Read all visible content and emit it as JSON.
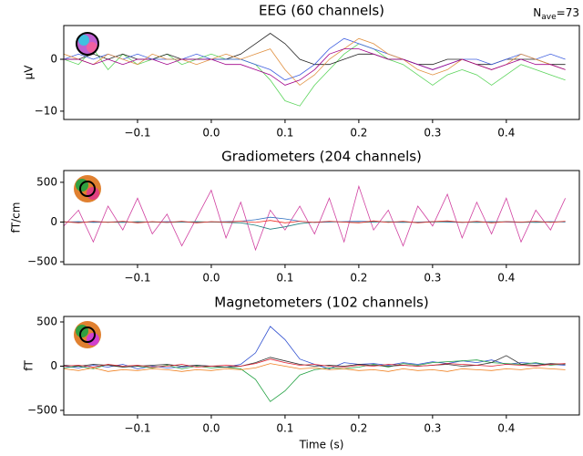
{
  "chart_data": [
    {
      "type": "line",
      "title": "EEG (60 channels)",
      "ylabel": "µV",
      "annotation": {
        "text": "N",
        "subscript": "ave",
        "suffix": "=73"
      },
      "x": [
        -0.2,
        -0.18,
        -0.16,
        -0.14,
        -0.12,
        -0.1,
        -0.08,
        -0.06,
        -0.04,
        -0.02,
        0,
        0.02,
        0.04,
        0.06,
        0.08,
        0.1,
        0.12,
        0.14,
        0.16,
        0.18,
        0.2,
        0.22,
        0.24,
        0.26,
        0.28,
        0.3,
        0.32,
        0.34,
        0.36,
        0.38,
        0.4,
        0.42,
        0.44,
        0.46,
        0.48
      ],
      "xlim": [
        -0.2,
        0.499
      ],
      "ylim": [
        -11.6,
        6.5
      ],
      "xticks": [
        {
          "value": -0.1,
          "label": "−0.1"
        },
        {
          "value": 0,
          "label": "0.0"
        },
        0.1,
        0.2,
        0.3,
        0.4
      ],
      "yticks": [
        {
          "value": -10,
          "label": "−10"
        },
        0
      ],
      "series": [
        {
          "color": "#5ad45a",
          "values": [
            0,
            -1,
            2,
            -2,
            1,
            -1,
            0,
            1,
            -1,
            0,
            1,
            0,
            0,
            -1,
            -4,
            -8,
            -9,
            -5,
            -2,
            1,
            3,
            2,
            0,
            -1,
            -3,
            -5,
            -3,
            -2,
            -3,
            -5,
            -3,
            -1,
            -2,
            -3,
            -4
          ]
        },
        {
          "color": "#222222",
          "values": [
            0,
            0,
            1,
            0,
            1,
            0,
            0,
            1,
            0,
            0,
            0,
            0,
            1,
            3,
            5,
            3,
            0,
            -1,
            -1,
            0,
            1,
            1,
            0,
            0,
            -1,
            -1,
            0,
            0,
            -1,
            -1,
            0,
            0,
            0,
            -1,
            -1
          ]
        },
        {
          "color": "#4060e0",
          "values": [
            0,
            1,
            0,
            1,
            0,
            1,
            0,
            0,
            0,
            1,
            0,
            0,
            0,
            -1,
            -2,
            -4,
            -3,
            -1,
            2,
            4,
            3,
            2,
            1,
            0,
            -1,
            -2,
            -1,
            0,
            0,
            -1,
            0,
            1,
            0,
            1,
            0
          ]
        },
        {
          "color": "#e09040",
          "values": [
            1,
            0,
            -1,
            1,
            0,
            -1,
            1,
            0,
            0,
            -1,
            0,
            1,
            0,
            1,
            2,
            -2,
            -5,
            -3,
            0,
            2,
            4,
            3,
            1,
            0,
            -2,
            -3,
            -2,
            0,
            -1,
            -2,
            -1,
            1,
            0,
            -1,
            -2
          ]
        },
        {
          "color": "#a0008a",
          "values": [
            0,
            0,
            -1,
            0,
            -1,
            0,
            0,
            -1,
            0,
            0,
            0,
            -1,
            -1,
            -2,
            -3,
            -5,
            -4,
            -2,
            1,
            2,
            2,
            1,
            0,
            0,
            -1,
            -2,
            -1,
            0,
            -1,
            -2,
            -1,
            0,
            -1,
            -1,
            -2
          ]
        }
      ]
    },
    {
      "type": "line",
      "title": "Gradiometers (204 channels)",
      "ylabel": "fT/cm",
      "x": [
        -0.2,
        -0.18,
        -0.16,
        -0.14,
        -0.12,
        -0.1,
        -0.08,
        -0.06,
        -0.04,
        -0.02,
        0,
        0.02,
        0.04,
        0.06,
        0.08,
        0.1,
        0.12,
        0.14,
        0.16,
        0.18,
        0.2,
        0.22,
        0.24,
        0.26,
        0.28,
        0.3,
        0.32,
        0.34,
        0.36,
        0.38,
        0.4,
        0.42,
        0.44,
        0.46,
        0.48
      ],
      "xlim": [
        -0.2,
        0.499
      ],
      "ylim": [
        -534,
        648
      ],
      "xticks": [
        {
          "value": -0.1,
          "label": "−0.1"
        },
        {
          "value": 0,
          "label": "0.0"
        },
        0.1,
        0.2,
        0.3,
        0.4
      ],
      "yticks": [
        {
          "value": -500,
          "label": "−500"
        },
        0,
        500
      ],
      "series": [
        {
          "color": "#d040a0",
          "values": [
            -50,
            150,
            -250,
            200,
            -100,
            300,
            -150,
            100,
            -300,
            50,
            400,
            -200,
            250,
            -350,
            150,
            -100,
            200,
            -150,
            300,
            -250,
            450,
            -100,
            150,
            -300,
            200,
            -50,
            350,
            -200,
            250,
            -150,
            300,
            -250,
            150,
            -100,
            300
          ]
        },
        {
          "color": "#3070c0",
          "values": [
            0,
            5,
            -5,
            0,
            5,
            -5,
            0,
            5,
            0,
            -5,
            0,
            5,
            10,
            30,
            60,
            40,
            10,
            -5,
            0,
            5,
            10,
            5,
            0,
            -5,
            0,
            5,
            0,
            -5,
            0,
            5,
            0,
            -5,
            0,
            5,
            0
          ]
        },
        {
          "color": "#208080",
          "values": [
            0,
            -5,
            5,
            0,
            -5,
            5,
            0,
            -5,
            0,
            5,
            0,
            -5,
            -10,
            -40,
            -90,
            -60,
            -20,
            0,
            5,
            0,
            -5,
            0,
            5,
            0,
            -5,
            0,
            5,
            0,
            -5,
            0,
            5,
            0,
            -5,
            0,
            5
          ]
        },
        {
          "color": "#f03020",
          "values": [
            5,
            -10,
            10,
            -5,
            10,
            -10,
            5,
            -5,
            10,
            -10,
            5,
            0,
            10,
            -5,
            20,
            -10,
            10,
            -5,
            10,
            0,
            -10,
            15,
            -5,
            10,
            -10,
            5,
            15,
            -5,
            10,
            -10,
            5,
            0,
            10,
            -5,
            10
          ]
        }
      ]
    },
    {
      "type": "line",
      "title": "Magnetometers (102 channels)",
      "ylabel": "fT",
      "xlabel": "Time (s)",
      "x": [
        -0.2,
        -0.18,
        -0.16,
        -0.14,
        -0.12,
        -0.1,
        -0.08,
        -0.06,
        -0.04,
        -0.02,
        0,
        0.02,
        0.04,
        0.06,
        0.08,
        0.1,
        0.12,
        0.14,
        0.16,
        0.18,
        0.2,
        0.22,
        0.24,
        0.26,
        0.28,
        0.3,
        0.32,
        0.34,
        0.36,
        0.38,
        0.4,
        0.42,
        0.44,
        0.46,
        0.48
      ],
      "xlim": [
        -0.2,
        0.499
      ],
      "ylim": [
        -552,
        562
      ],
      "xticks": [
        {
          "value": -0.1,
          "label": "−0.1"
        },
        {
          "value": 0,
          "label": "0.0"
        },
        0.1,
        0.2,
        0.3,
        0.4
      ],
      "yticks": [
        {
          "value": -500,
          "label": "−500"
        },
        0,
        500
      ],
      "series": [
        {
          "color": "#3050d0",
          "values": [
            0,
            -20,
            10,
            -10,
            20,
            -30,
            0,
            -20,
            -10,
            10,
            0,
            -10,
            20,
            150,
            450,
            300,
            80,
            20,
            -30,
            40,
            20,
            30,
            10,
            40,
            20,
            50,
            30,
            60,
            40,
            70,
            20,
            40,
            30,
            20,
            10
          ]
        },
        {
          "color": "#20a040",
          "values": [
            -20,
            0,
            -30,
            20,
            -10,
            0,
            -20,
            10,
            -30,
            0,
            -20,
            -10,
            -30,
            -150,
            -400,
            -280,
            -100,
            -40,
            -20,
            -30,
            -10,
            20,
            -10,
            30,
            10,
            40,
            50,
            60,
            70,
            40,
            30,
            20,
            40,
            10,
            30
          ]
        },
        {
          "color": "#f08020",
          "values": [
            -30,
            -50,
            -20,
            -60,
            -40,
            -50,
            -30,
            -40,
            -60,
            -40,
            -50,
            -30,
            -40,
            -20,
            30,
            0,
            -30,
            -20,
            -40,
            -30,
            -50,
            -40,
            -60,
            -30,
            -50,
            -40,
            -60,
            -30,
            -40,
            -50,
            -30,
            -40,
            -20,
            -30,
            -40
          ]
        },
        {
          "color": "#303030",
          "values": [
            10,
            0,
            20,
            10,
            -10,
            0,
            10,
            20,
            0,
            10,
            0,
            -10,
            0,
            40,
            100,
            60,
            20,
            0,
            10,
            0,
            20,
            10,
            0,
            10,
            0,
            10,
            20,
            0,
            10,
            40,
            120,
            20,
            10,
            30,
            20
          ]
        },
        {
          "color": "#e02030",
          "values": [
            0,
            10,
            -10,
            20,
            0,
            10,
            -10,
            0,
            20,
            -10,
            0,
            10,
            0,
            30,
            80,
            40,
            10,
            20,
            0,
            -10,
            10,
            0,
            20,
            10,
            0,
            10,
            30,
            20,
            10,
            0,
            20,
            10,
            0,
            20,
            30
          ]
        }
      ]
    }
  ]
}
